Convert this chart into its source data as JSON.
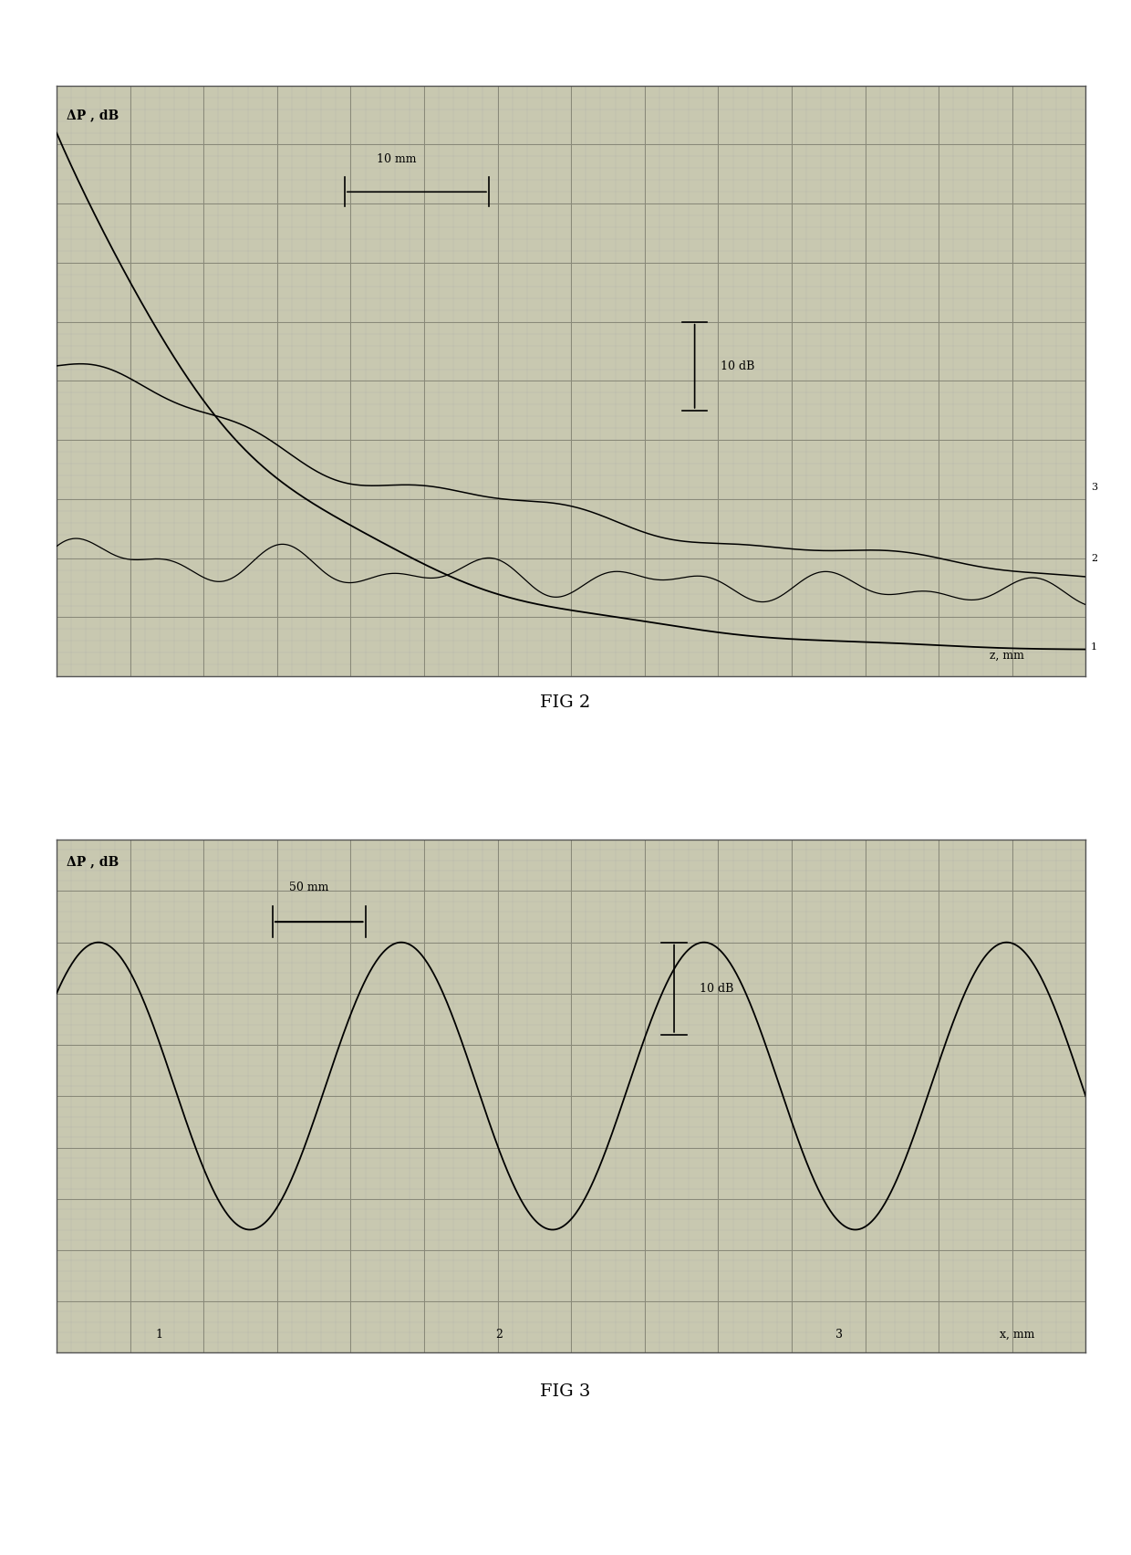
{
  "fig2": {
    "title": "FIG 2",
    "ylabel": "ΔP , dB",
    "xlabel": "z, mm",
    "scale_label_x": "10 mm",
    "scale_label_y": "10 dB",
    "bg_color": "#c8c8b0",
    "line_color": "#000000",
    "grid_major_color": "#888877",
    "grid_minor_color": "#aaaaaa"
  },
  "fig3": {
    "title": "FIG 3",
    "ylabel": "ΔP , dB",
    "xlabel": "x, mm",
    "scale_label_x": "50 mm",
    "scale_label_y": "10 dB",
    "bg_color": "#c8c8b0",
    "line_color": "#000000",
    "grid_major_color": "#888877",
    "grid_minor_color": "#aaaaaa"
  },
  "page_bg": "#ffffff",
  "nx_major": 14,
  "ny_major": 10,
  "nx_minor": 5,
  "ny_minor": 5
}
